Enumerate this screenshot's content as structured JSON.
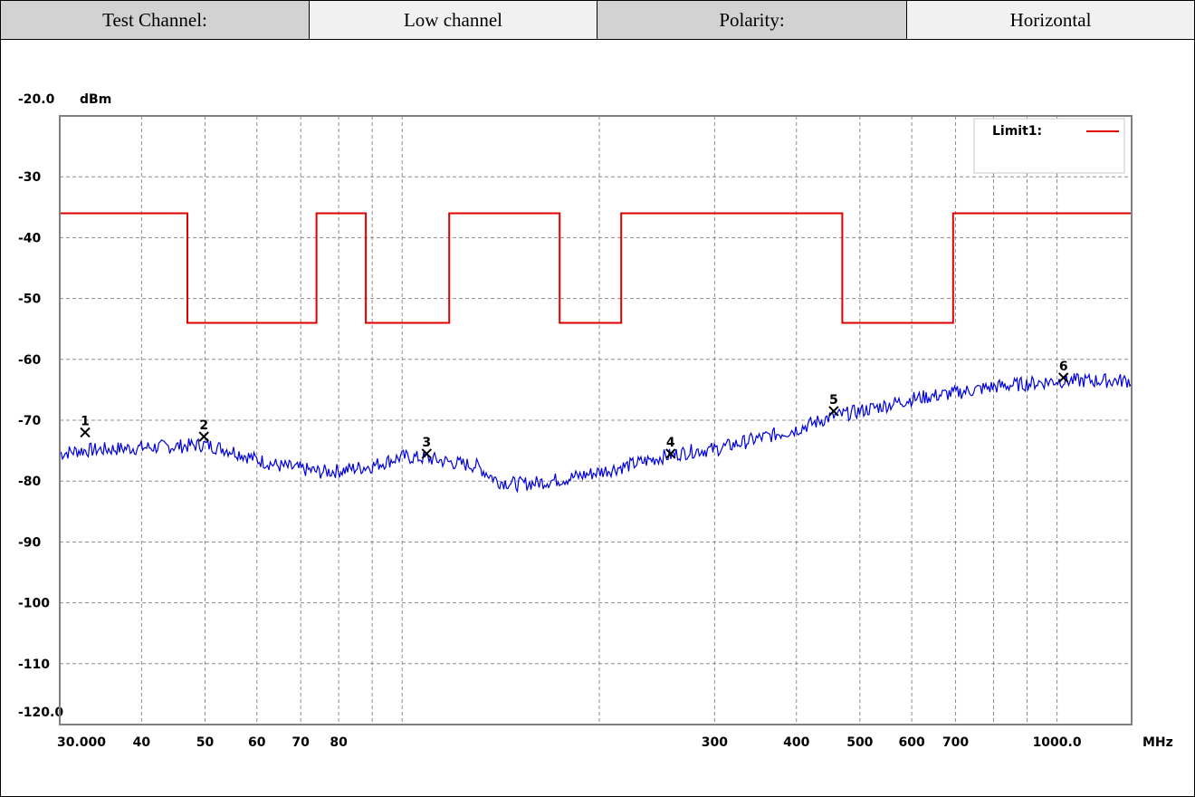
{
  "header": {
    "test_channel_label": "Test Channel:",
    "test_channel_value": "Low channel",
    "polarity_label": "Polarity:",
    "polarity_value": "Horizontal"
  },
  "chart_data": {
    "type": "line",
    "x_scale": "log",
    "xlim": [
      30,
      1300
    ],
    "ylim": [
      -120,
      -20
    ],
    "y_unit": "dBm",
    "x_unit": "MHz",
    "y_top_label": "-20.0",
    "y_bottom_label": "-120.0",
    "y_ticks": [
      {
        "value": -30,
        "label": "-30"
      },
      {
        "value": -40,
        "label": "-40"
      },
      {
        "value": -50,
        "label": "-50"
      },
      {
        "value": -60,
        "label": "-60"
      },
      {
        "value": -70,
        "label": "-70"
      },
      {
        "value": -80,
        "label": "-80"
      },
      {
        "value": -90,
        "label": "-90"
      },
      {
        "value": -100,
        "label": "-100"
      },
      {
        "value": -110,
        "label": "-110"
      }
    ],
    "x_ticks": [
      {
        "value": 30,
        "label": "30.000"
      },
      {
        "value": 40,
        "label": "40"
      },
      {
        "value": 50,
        "label": "50"
      },
      {
        "value": 60,
        "label": "60"
      },
      {
        "value": 70,
        "label": "70"
      },
      {
        "value": 80,
        "label": "80"
      },
      {
        "value": 300,
        "label": "300"
      },
      {
        "value": 400,
        "label": "400"
      },
      {
        "value": 500,
        "label": "500"
      },
      {
        "value": 600,
        "label": "600"
      },
      {
        "value": 700,
        "label": "700"
      },
      {
        "value": 1000,
        "label": "1000.0"
      }
    ],
    "x_grid": [
      30,
      40,
      50,
      60,
      70,
      80,
      90,
      100,
      200,
      300,
      400,
      500,
      600,
      700,
      800,
      900,
      1000
    ],
    "grid": true,
    "legend": {
      "position": "top-right",
      "entries": [
        {
          "name": "Limit1:",
          "color": "#e00000"
        }
      ]
    },
    "series": [
      {
        "name": "Limit1:",
        "color": "#e00000",
        "style": "step",
        "points": [
          [
            30,
            -36
          ],
          [
            47,
            -36
          ],
          [
            47,
            -54
          ],
          [
            74,
            -54
          ],
          [
            74,
            -36
          ],
          [
            88,
            -36
          ],
          [
            88,
            -54
          ],
          [
            118,
            -54
          ],
          [
            118,
            -36
          ],
          [
            174,
            -36
          ],
          [
            174,
            -54
          ],
          [
            216,
            -54
          ],
          [
            216,
            -36
          ],
          [
            470,
            -36
          ],
          [
            470,
            -54
          ],
          [
            694,
            -54
          ],
          [
            694,
            -36
          ],
          [
            1300,
            -36
          ]
        ]
      },
      {
        "name": "trace",
        "color": "#0000dd",
        "style": "noisy",
        "points": [
          [
            30,
            -75.5
          ],
          [
            32,
            -75
          ],
          [
            35,
            -74.8
          ],
          [
            40,
            -74.5
          ],
          [
            45,
            -74.3
          ],
          [
            50,
            -74
          ],
          [
            55,
            -75
          ],
          [
            60,
            -76.5
          ],
          [
            65,
            -77.5
          ],
          [
            70,
            -78
          ],
          [
            75,
            -78.5
          ],
          [
            80,
            -78.3
          ],
          [
            90,
            -77.5
          ],
          [
            100,
            -76
          ],
          [
            110,
            -76.3
          ],
          [
            120,
            -77
          ],
          [
            130,
            -77.5
          ],
          [
            140,
            -80
          ],
          [
            150,
            -80.5
          ],
          [
            160,
            -80.3
          ],
          [
            180,
            -79.5
          ],
          [
            200,
            -78.5
          ],
          [
            220,
            -77.5
          ],
          [
            250,
            -76
          ],
          [
            280,
            -75
          ],
          [
            300,
            -74.8
          ],
          [
            350,
            -73
          ],
          [
            400,
            -71.5
          ],
          [
            450,
            -69.5
          ],
          [
            500,
            -68.5
          ],
          [
            550,
            -67.5
          ],
          [
            600,
            -66.5
          ],
          [
            700,
            -65.5
          ],
          [
            800,
            -64.5
          ],
          [
            900,
            -64
          ],
          [
            1000,
            -63.5
          ],
          [
            1300,
            -63.5
          ]
        ]
      }
    ],
    "markers": [
      {
        "label": "1",
        "x": 32.8,
        "y": -72
      },
      {
        "label": "2",
        "x": 49.8,
        "y": -72.7
      },
      {
        "label": "3",
        "x": 109,
        "y": -75.5
      },
      {
        "label": "4",
        "x": 257,
        "y": -75.5
      },
      {
        "label": "5",
        "x": 456,
        "y": -68.5
      },
      {
        "label": "6",
        "x": 1023,
        "y": -63
      }
    ]
  }
}
